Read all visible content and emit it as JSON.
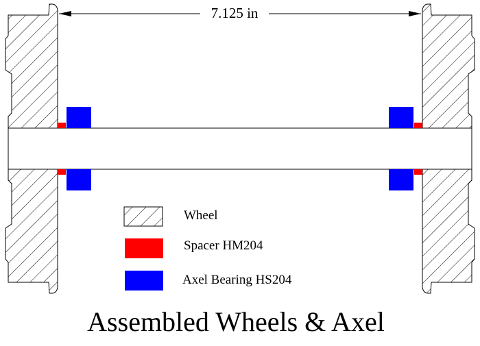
{
  "drawing": {
    "dimension_label": "7.125 in",
    "title": "Assembled Wheels & Axel",
    "legend": [
      {
        "label": "Wheel",
        "pattern": "hatch",
        "color": "#000000"
      },
      {
        "label": "Spacer HM204",
        "pattern": "solid",
        "color": "#ff0000"
      },
      {
        "label": "Axel Bearing HS204",
        "pattern": "solid",
        "color": "#0000ff"
      }
    ]
  }
}
